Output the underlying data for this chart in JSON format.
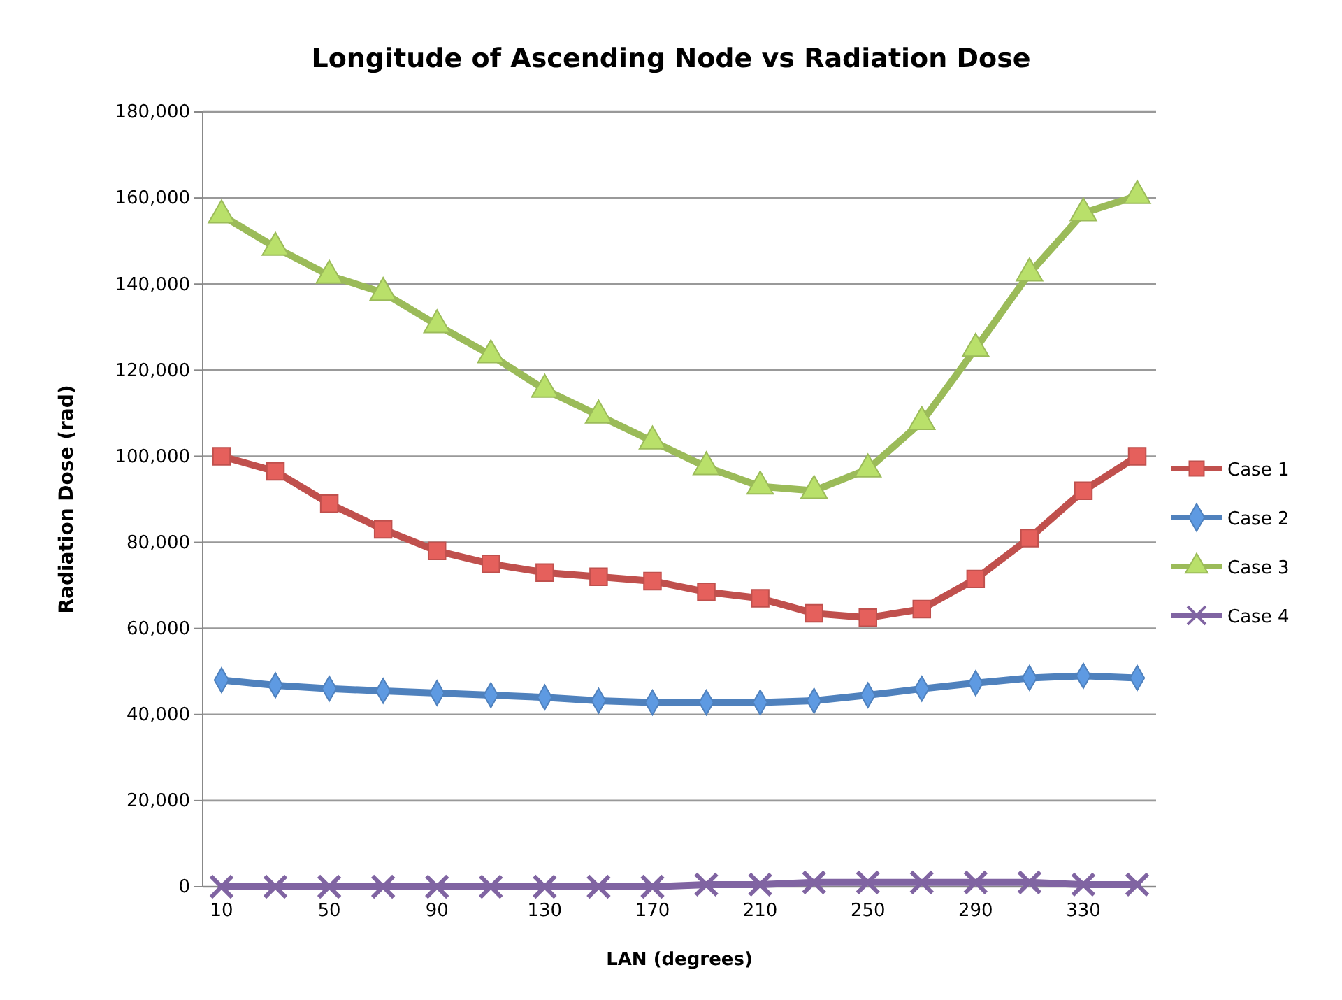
{
  "chart_data": {
    "type": "line",
    "title": "Longitude of Ascending Node vs Radiation Dose",
    "xlabel": "LAN (degrees)",
    "ylabel": "Radiation Dose (rad)",
    "categories": [
      "10",
      null,
      "50",
      null,
      "90",
      null,
      "130",
      null,
      "170",
      null,
      "210",
      null,
      "250",
      null,
      "290",
      null,
      "330",
      null
    ],
    "series": [
      {
        "name": "Case 1",
        "color": "#c0504d",
        "marker": "square",
        "values": [
          100000,
          96500,
          89000,
          83000,
          78000,
          75000,
          73000,
          72000,
          71000,
          68500,
          67000,
          63500,
          62500,
          64500,
          71500,
          81000,
          92000,
          100000
        ]
      },
      {
        "name": "Case 2",
        "color": "#4f81bd",
        "marker": "diamond",
        "values": [
          48000,
          46800,
          46000,
          45500,
          45000,
          44500,
          44000,
          43200,
          42800,
          42800,
          42800,
          43200,
          44500,
          46000,
          47300,
          48500,
          49000,
          48500
        ]
      },
      {
        "name": "Case 3",
        "color": "#9bbb59",
        "marker": "triangle",
        "values": [
          156000,
          148500,
          142000,
          138000,
          130500,
          123500,
          115500,
          109500,
          103500,
          97500,
          93000,
          92000,
          97000,
          108000,
          125000,
          142500,
          156500,
          160500
        ]
      },
      {
        "name": "Case 4",
        "color": "#8064a2",
        "marker": "cross",
        "values": [
          0,
          0,
          0,
          0,
          0,
          0,
          0,
          0,
          0,
          500,
          500,
          1000,
          1000,
          1000,
          1000,
          1000,
          500,
          500
        ]
      }
    ],
    "ylim": [
      0,
      180000
    ],
    "yticks": [
      {
        "value": 0,
        "label": "0"
      },
      {
        "value": 20000,
        "label": "20,000"
      },
      {
        "value": 40000,
        "label": "40,000"
      },
      {
        "value": 60000,
        "label": "60,000"
      },
      {
        "value": 80000,
        "label": "80,000"
      },
      {
        "value": 100000,
        "label": "100,000"
      },
      {
        "value": 120000,
        "label": "120,000"
      },
      {
        "value": 140000,
        "label": "140,000"
      },
      {
        "value": 160000,
        "label": "160,000"
      },
      {
        "value": 180000,
        "label": "180,000"
      }
    ],
    "grid": "y",
    "legend": "right",
    "line_style": "solid"
  }
}
